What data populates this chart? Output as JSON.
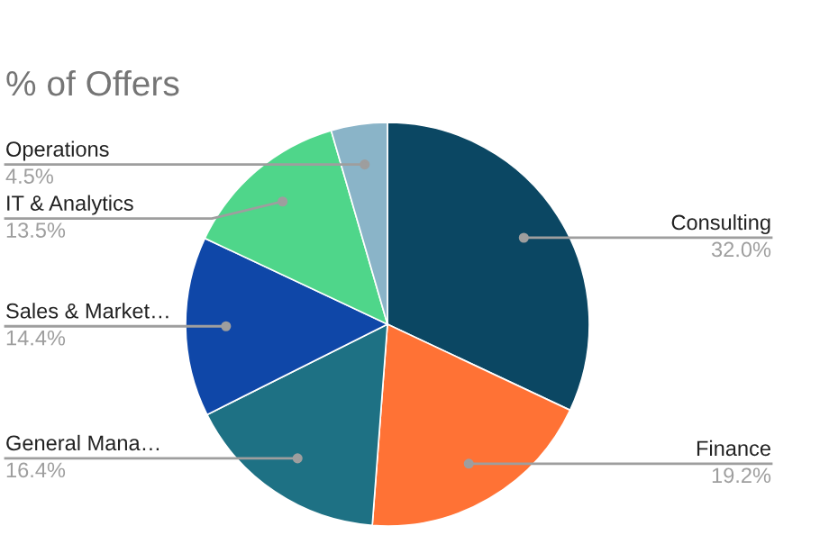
{
  "chart_data": {
    "type": "pie",
    "title": "% of Offers",
    "categories": [
      "Consulting",
      "Finance",
      "General Mana…",
      "Sales & Market…",
      "IT & Analytics",
      "Operations"
    ],
    "values": [
      32.0,
      19.2,
      16.4,
      14.4,
      13.5,
      4.5
    ],
    "value_labels": [
      "32.0%",
      "19.2%",
      "16.4%",
      "14.4%",
      "13.5%",
      "4.5%"
    ],
    "colors": [
      "#0b4763",
      "#ff7235",
      "#1e7184",
      "#0f47a8",
      "#4fd68a",
      "#8ab4c8"
    ],
    "legend": false
  }
}
